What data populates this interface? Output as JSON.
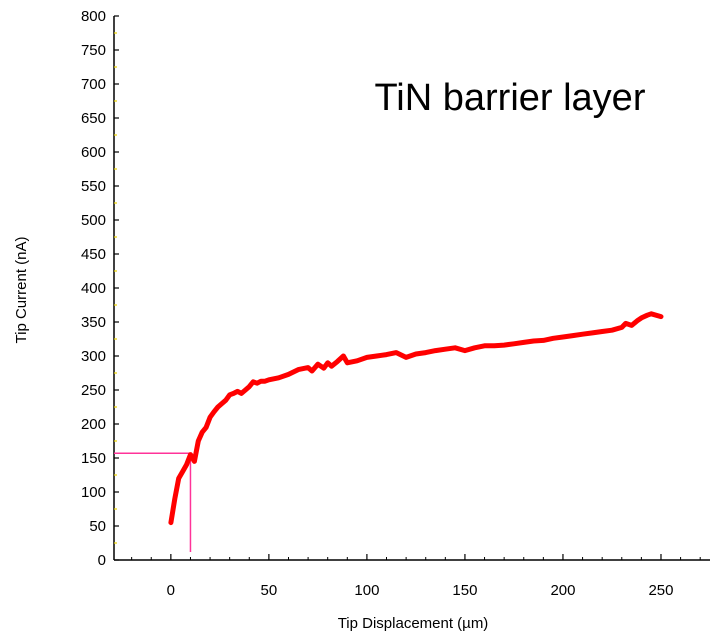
{
  "chart_data": {
    "type": "line",
    "xlabel": "Tip Displacement (µm)",
    "ylabel": "Tip Current (nA)",
    "xlim": [
      -29,
      275
    ],
    "ylim": [
      0,
      800
    ],
    "x_ticks": [
      0,
      50,
      100,
      150,
      200,
      250
    ],
    "y_ticks": [
      0,
      50,
      100,
      150,
      200,
      250,
      300,
      350,
      400,
      450,
      500,
      550,
      600,
      650,
      700,
      750,
      800
    ],
    "annotation": "TiN barrier layer",
    "grid": false,
    "legend": "none",
    "series": [
      {
        "color": "#ff0000",
        "x": [
          0,
          2,
          4,
          6,
          8,
          10,
          11,
          12,
          14,
          16,
          18,
          20,
          22,
          24,
          26,
          28,
          30,
          32,
          34,
          36,
          38,
          40,
          42,
          44,
          46,
          48,
          50,
          55,
          60,
          65,
          70,
          72,
          75,
          78,
          80,
          82,
          85,
          88,
          90,
          95,
          100,
          105,
          110,
          115,
          120,
          125,
          130,
          135,
          140,
          145,
          150,
          155,
          160,
          165,
          170,
          175,
          180,
          185,
          190,
          195,
          200,
          205,
          210,
          215,
          220,
          225,
          230,
          232,
          235,
          238,
          240,
          243,
          245,
          250
        ],
        "y": [
          55,
          90,
          120,
          130,
          140,
          155,
          150,
          145,
          175,
          188,
          195,
          210,
          218,
          225,
          230,
          235,
          243,
          245,
          248,
          245,
          250,
          255,
          262,
          260,
          263,
          263,
          265,
          268,
          273,
          280,
          283,
          278,
          288,
          282,
          290,
          285,
          292,
          300,
          290,
          293,
          298,
          300,
          302,
          305,
          298,
          303,
          305,
          308,
          310,
          312,
          308,
          312,
          315,
          315,
          316,
          318,
          320,
          322,
          323,
          326,
          328,
          330,
          332,
          334,
          336,
          338,
          342,
          348,
          345,
          352,
          356,
          360,
          362,
          358
        ]
      }
    ],
    "reference_lines": {
      "color": "#ff3399",
      "x": 10,
      "y": 157
    }
  }
}
